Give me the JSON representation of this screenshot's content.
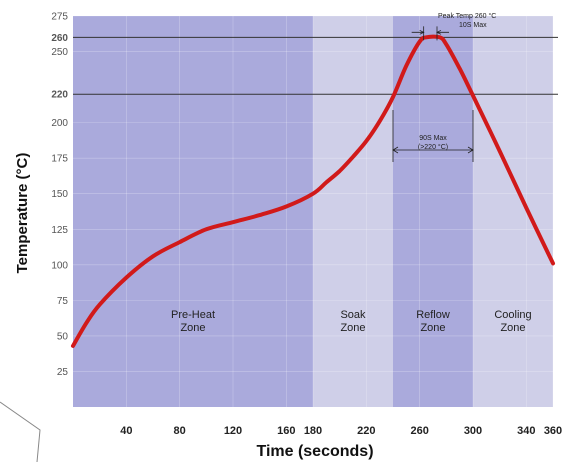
{
  "chart_data": {
    "type": "line",
    "xlabel": "Time (seconds)",
    "ylabel": "Temperature (°C)",
    "xlim": [
      0,
      360
    ],
    "ylim": [
      0,
      275
    ],
    "x_ticks": [
      40,
      80,
      120,
      160,
      180,
      220,
      260,
      300,
      340,
      360
    ],
    "y_ticks": [
      25,
      50,
      75,
      100,
      125,
      150,
      175,
      200,
      220,
      250,
      260,
      275
    ],
    "y_ticks_bold": [
      220,
      260
    ],
    "grid": true,
    "series": [
      {
        "color": "#d11a1a",
        "x": [
          0,
          10,
          20,
          40,
          60,
          80,
          100,
          120,
          140,
          160,
          180,
          190,
          200,
          210,
          220,
          230,
          240,
          250,
          260,
          265,
          275,
          280,
          290,
          300,
          320,
          340,
          360
        ],
        "y": [
          43,
          59,
          72,
          91,
          106,
          116,
          125,
          130,
          135,
          141,
          150,
          158,
          166,
          176,
          187,
          201,
          218,
          240,
          257,
          260,
          260,
          255,
          238,
          219,
          180,
          140,
          101
        ]
      }
    ],
    "zones": [
      {
        "label": "Pre-Heat\nZone",
        "from": 0,
        "to": 180,
        "color": "#aaaadc"
      },
      {
        "label": "Soak\nZone",
        "from": 180,
        "to": 240,
        "color": "#cfcfe8"
      },
      {
        "label": "Reflow\nZone",
        "from": 240,
        "to": 300,
        "color": "#aaaadc"
      },
      {
        "label": "Cooling\nZone",
        "from": 300,
        "to": 360,
        "color": "#cfcfe8"
      }
    ],
    "reference_lines": [
      220,
      260
    ],
    "annotations": [
      {
        "lines": [
          "Peak Temp 260 °C",
          "10S Max"
        ],
        "x_from": 263,
        "x_to": 273
      },
      {
        "lines": [
          "90S Max",
          "(>220 °C)"
        ],
        "x_from": 240,
        "x_to": 300
      }
    ]
  }
}
